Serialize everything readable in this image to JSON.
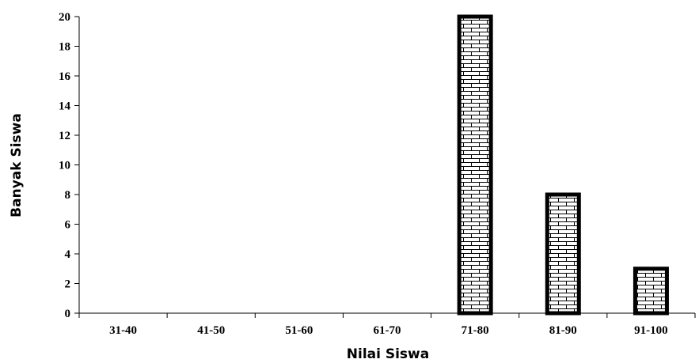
{
  "chart_data": {
    "type": "bar",
    "categories": [
      "31-40",
      "41-50",
      "51-60",
      "61-70",
      "71-80",
      "81-90",
      "91-100"
    ],
    "values": [
      0,
      0,
      0,
      0,
      20,
      8,
      3
    ],
    "xlabel": "Nilai Siswa",
    "ylabel": "Banyak Siswa",
    "ylim": [
      0,
      20
    ],
    "yticks": [
      0,
      2,
      4,
      6,
      8,
      10,
      12,
      14,
      16,
      18,
      20
    ],
    "grid": false,
    "legend": "none",
    "bar_fill": "brick-pattern",
    "colors": {
      "bar_stroke": "#000000",
      "bar_fill": "#ffffff",
      "axis": "#000000"
    }
  }
}
